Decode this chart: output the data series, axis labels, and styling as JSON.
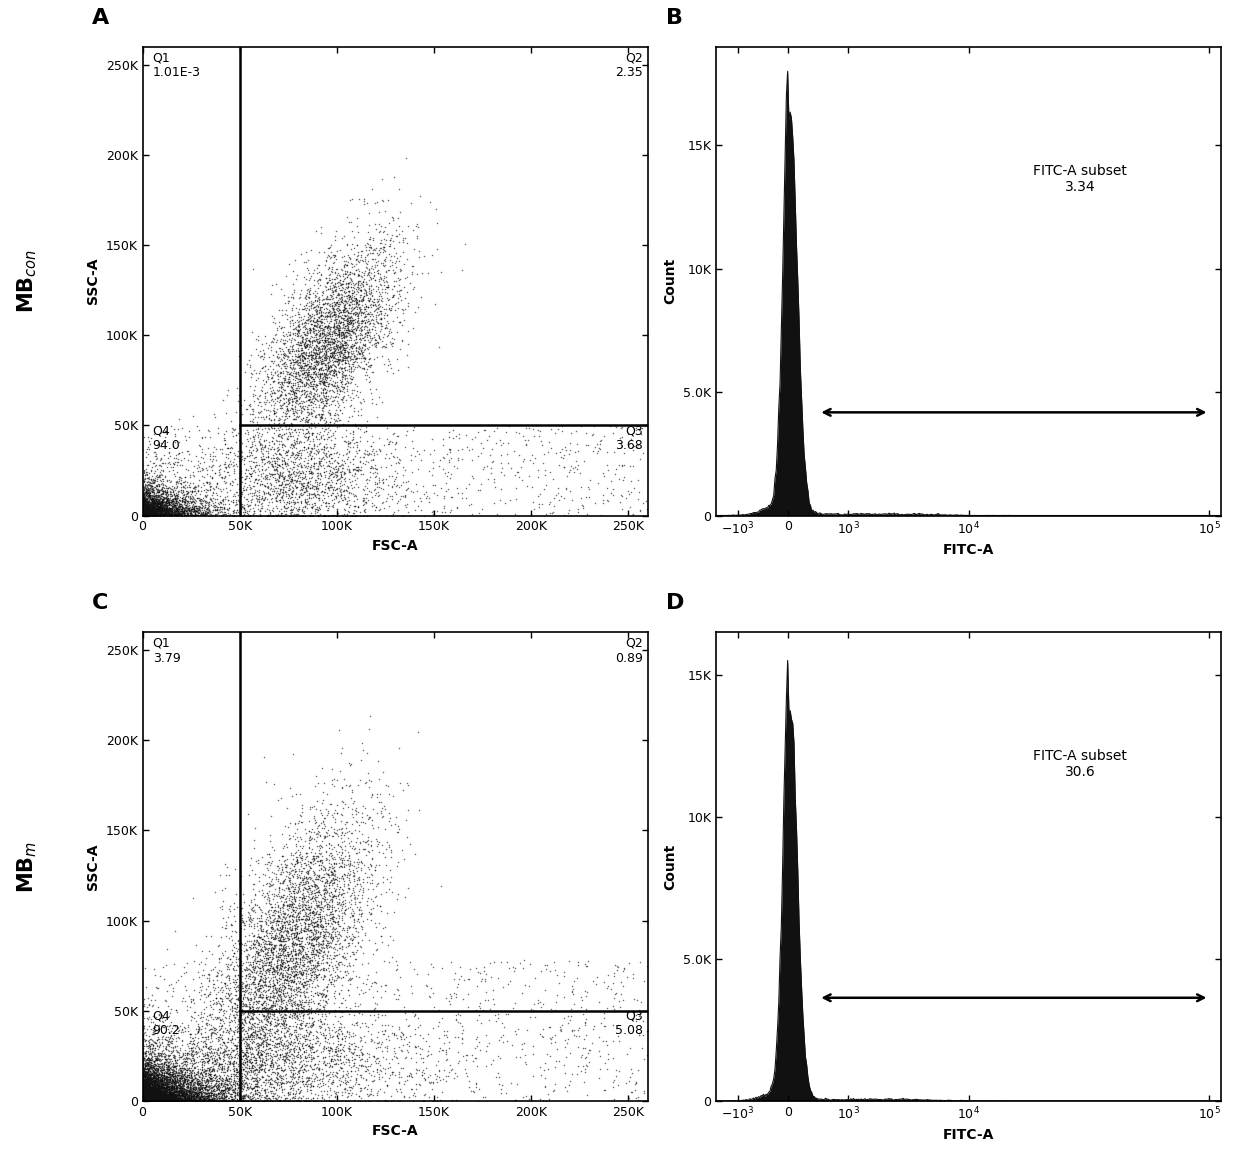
{
  "panel_labels": [
    "A",
    "B",
    "C",
    "D"
  ],
  "row_label_top": "MB$_{con}$",
  "row_label_bot": "MB$_{m}$",
  "scatter_A": {
    "gate_x": 50000,
    "gate_y": 50000,
    "xlim": [
      0,
      260000
    ],
    "ylim": [
      0,
      260000
    ],
    "xlabel": "FSC-A",
    "ylabel": "SSC-A",
    "xticks": [
      0,
      50000,
      100000,
      150000,
      200000,
      250000
    ],
    "yticks": [
      0,
      50000,
      100000,
      150000,
      200000,
      250000
    ],
    "tick_labels": [
      "0",
      "50K",
      "100K",
      "150K",
      "200K",
      "250K"
    ],
    "Q1_label": "Q1\n1.01E-3",
    "Q2_label": "Q2\n2.35",
    "Q3_label": "Q3\n3.68",
    "Q4_label": "Q4\n94.0"
  },
  "scatter_C": {
    "gate_x": 50000,
    "gate_y": 50000,
    "xlim": [
      0,
      260000
    ],
    "ylim": [
      0,
      260000
    ],
    "xlabel": "FSC-A",
    "ylabel": "SSC-A",
    "xticks": [
      0,
      50000,
      100000,
      150000,
      200000,
      250000
    ],
    "yticks": [
      0,
      50000,
      100000,
      150000,
      200000,
      250000
    ],
    "tick_labels": [
      "0",
      "50K",
      "100K",
      "150K",
      "200K",
      "250K"
    ],
    "Q1_label": "Q1\n3.79",
    "Q2_label": "Q2\n0.89",
    "Q3_label": "Q3\n5.08",
    "Q4_label": "Q4\n90.2"
  },
  "hist_B": {
    "xlabel": "FITC-A",
    "ylabel": "Count",
    "yticks": [
      0,
      5000,
      10000,
      15000
    ],
    "ytick_labels": [
      "0",
      "5.0K",
      "10K",
      "15K"
    ],
    "ymax": 19000,
    "annotation": "FITC-A subset\n3.34",
    "peak_height": 18000
  },
  "hist_D": {
    "xlabel": "FITC-A",
    "ylabel": "Count",
    "yticks": [
      0,
      5000,
      10000,
      15000
    ],
    "ytick_labels": [
      "0",
      "5.0K",
      "10K",
      "15K"
    ],
    "ymax": 16500,
    "annotation": "FITC-A subset\n30.6",
    "peak_height": 15500
  },
  "dot_color": "#111111",
  "dot_size": 1.2,
  "fill_color": "#111111",
  "background": "#ffffff",
  "line_color": "#000000"
}
